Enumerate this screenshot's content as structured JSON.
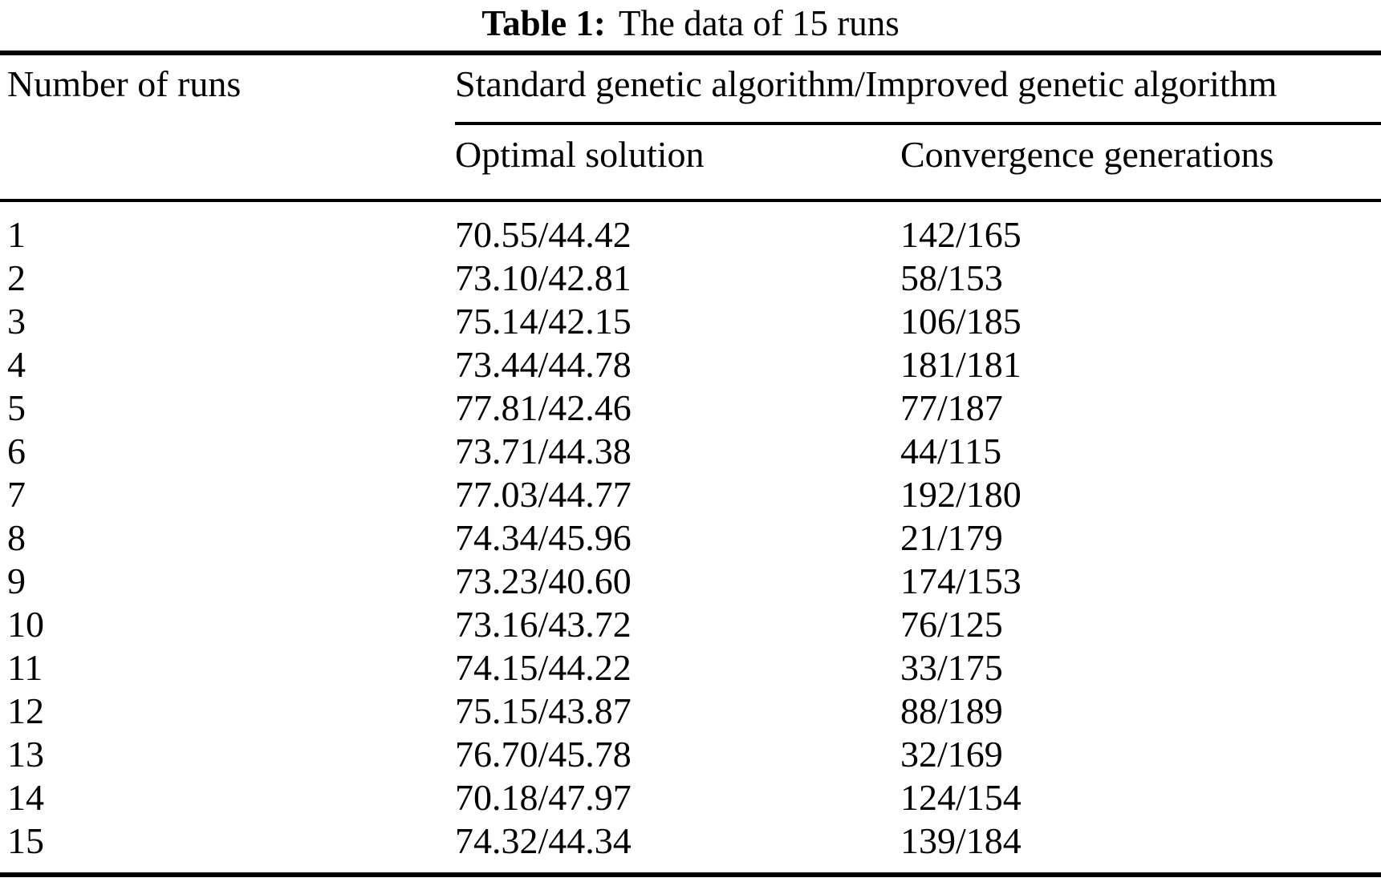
{
  "caption": {
    "label": "Table 1:",
    "text": "The data of 15 runs"
  },
  "table": {
    "header": {
      "col1": "Number of runs",
      "group": "Standard genetic algorithm/Improved genetic algorithm",
      "sub1": "Optimal solution",
      "sub2": "Convergence generations"
    },
    "rows": [
      {
        "run": "1",
        "optimal": "70.55/44.42",
        "convergence": "142/165"
      },
      {
        "run": "2",
        "optimal": "73.10/42.81",
        "convergence": "58/153"
      },
      {
        "run": "3",
        "optimal": "75.14/42.15",
        "convergence": "106/185"
      },
      {
        "run": "4",
        "optimal": "73.44/44.78",
        "convergence": "181/181"
      },
      {
        "run": "5",
        "optimal": "77.81/42.46",
        "convergence": "77/187"
      },
      {
        "run": "6",
        "optimal": "73.71/44.38",
        "convergence": "44/115"
      },
      {
        "run": "7",
        "optimal": "77.03/44.77",
        "convergence": "192/180"
      },
      {
        "run": "8",
        "optimal": "74.34/45.96",
        "convergence": "21/179"
      },
      {
        "run": "9",
        "optimal": "73.23/40.60",
        "convergence": "174/153"
      },
      {
        "run": "10",
        "optimal": "73.16/43.72",
        "convergence": "76/125"
      },
      {
        "run": "11",
        "optimal": "74.15/44.22",
        "convergence": "33/175"
      },
      {
        "run": "12",
        "optimal": "75.15/43.87",
        "convergence": "88/189"
      },
      {
        "run": "13",
        "optimal": "76.70/45.78",
        "convergence": "32/169"
      },
      {
        "run": "14",
        "optimal": "70.18/47.97",
        "convergence": "124/154"
      },
      {
        "run": "15",
        "optimal": "74.32/44.34",
        "convergence": "139/184"
      }
    ],
    "colors": {
      "text": "#000000",
      "background": "#ffffff",
      "rule": "#000000"
    }
  }
}
